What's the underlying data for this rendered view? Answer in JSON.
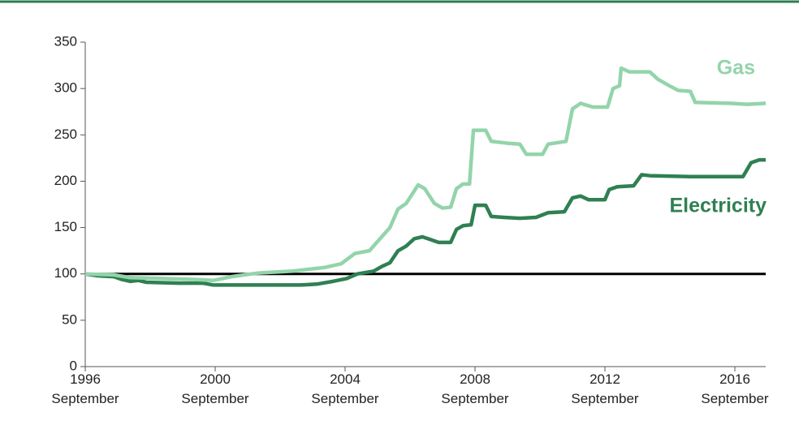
{
  "chart_data": {
    "type": "line",
    "xlim": [
      1996.67,
      2017.62
    ],
    "xticks": [
      {
        "value": 1996.67,
        "label": "1996 September"
      },
      {
        "value": 2000.67,
        "label": "2000 September"
      },
      {
        "value": 2004.67,
        "label": "2004 September"
      },
      {
        "value": 2008.67,
        "label": "2008 September"
      },
      {
        "value": 2012.67,
        "label": "2012 September"
      },
      {
        "value": 2016.67,
        "label": "2016 September"
      }
    ],
    "ylim": [
      0,
      350
    ],
    "yticks": [
      0,
      50,
      100,
      150,
      200,
      250,
      300,
      350
    ],
    "reference_line": 100,
    "series": [
      {
        "name": "Gas",
        "color": "#93d4ab",
        "x": [
          1996.67,
          1997.55,
          1998.05,
          1999.05,
          2000.05,
          2000.62,
          2001.17,
          2002.0,
          2003.05,
          2003.55,
          2004.05,
          2004.55,
          2004.97,
          2005.42,
          2005.67,
          2006.05,
          2006.3,
          2006.55,
          2006.92,
          2007.12,
          2007.42,
          2007.67,
          2007.92,
          2008.1,
          2008.3,
          2008.5,
          2008.62,
          2009.0,
          2009.17,
          2009.67,
          2010.05,
          2010.25,
          2010.75,
          2010.92,
          2011.47,
          2011.67,
          2011.92,
          2012.3,
          2012.75,
          2012.92,
          2013.12,
          2013.17,
          2013.42,
          2014.05,
          2014.3,
          2014.6,
          2014.92,
          2015.3,
          2015.45,
          2016.55,
          2017.05,
          2017.62
        ],
        "values": [
          100,
          99,
          96,
          95,
          94,
          93,
          97,
          101,
          103,
          105,
          107,
          111,
          122,
          125,
          135,
          150,
          170,
          176,
          196,
          192,
          176,
          171,
          172,
          192,
          197,
          197,
          255,
          255,
          243,
          241,
          240,
          229,
          229,
          240,
          243,
          278,
          284,
          280,
          280,
          300,
          303,
          322,
          318,
          318,
          310,
          304,
          298,
          297,
          285,
          284,
          283,
          284
        ]
      },
      {
        "name": "Electricity",
        "color": "#2f8052",
        "x": [
          1996.67,
          1997.05,
          1997.55,
          1997.8,
          1998.05,
          1998.3,
          1998.55,
          1999.55,
          2000.3,
          2000.62,
          2001.55,
          2002.55,
          2003.3,
          2003.8,
          2004.3,
          2004.72,
          2005.05,
          2005.55,
          2005.8,
          2006.05,
          2006.3,
          2006.55,
          2006.8,
          2007.05,
          2007.3,
          2007.55,
          2007.92,
          2008.1,
          2008.3,
          2008.55,
          2008.67,
          2009.0,
          2009.17,
          2009.55,
          2010.05,
          2010.55,
          2010.92,
          2011.42,
          2011.67,
          2011.92,
          2012.17,
          2012.67,
          2012.8,
          2013.05,
          2013.55,
          2013.8,
          2014.05,
          2015.3,
          2016.92,
          2017.17,
          2017.42,
          2017.62
        ],
        "values": [
          100,
          98,
          97,
          94,
          92,
          93,
          91,
          90,
          90,
          88,
          88,
          88,
          88,
          89,
          92,
          95,
          100,
          103,
          108,
          112,
          125,
          130,
          138,
          140,
          137,
          134,
          134,
          148,
          152,
          153,
          174,
          174,
          162,
          161,
          160,
          161,
          166,
          167,
          182,
          184,
          180,
          180,
          191,
          194,
          195,
          207,
          206,
          205,
          205,
          220,
          223,
          223
        ]
      }
    ]
  }
}
